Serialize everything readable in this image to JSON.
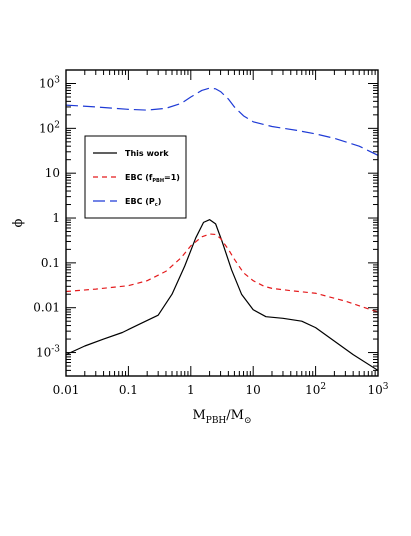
{
  "chart_data": {
    "type": "line",
    "title": "",
    "xlabel": "M_PBH/M_⊙",
    "ylabel": "ϕ",
    "xscale": "log",
    "yscale": "log",
    "xlim": [
      0.01,
      1000
    ],
    "ylim": [
      0.0003,
      2000
    ],
    "grid": false,
    "legend_position": "upper-left",
    "x_ticks": [
      {
        "value": 0.01,
        "base": "0.01",
        "exp": ""
      },
      {
        "value": 0.1,
        "base": "0.1",
        "exp": ""
      },
      {
        "value": 1,
        "base": "1",
        "exp": ""
      },
      {
        "value": 10,
        "base": "10",
        "exp": ""
      },
      {
        "value": 100,
        "base": "10",
        "exp": "2"
      },
      {
        "value": 1000,
        "base": "10",
        "exp": "3"
      }
    ],
    "y_ticks": [
      {
        "value": 0.001,
        "base": "10",
        "exp": "-3"
      },
      {
        "value": 0.01,
        "base": "0.01",
        "exp": ""
      },
      {
        "value": 0.1,
        "base": "0.1",
        "exp": ""
      },
      {
        "value": 1,
        "base": "1",
        "exp": ""
      },
      {
        "value": 10,
        "base": "10",
        "exp": ""
      },
      {
        "value": 100,
        "base": "10",
        "exp": "2"
      },
      {
        "value": 1000,
        "base": "10",
        "exp": "3"
      }
    ],
    "series": [
      {
        "name": "This work",
        "color": "#000000",
        "dash": "solid",
        "x": [
          0.01,
          0.02,
          0.04,
          0.08,
          0.15,
          0.3,
          0.5,
          0.8,
          1.2,
          1.6,
          2.0,
          2.5,
          3.2,
          4.5,
          6.5,
          10,
          16,
          30,
          60,
          100,
          200,
          400,
          1000
        ],
        "y": [
          0.0009,
          0.0014,
          0.002,
          0.0028,
          0.0043,
          0.0068,
          0.02,
          0.085,
          0.36,
          0.8,
          0.92,
          0.74,
          0.29,
          0.07,
          0.02,
          0.009,
          0.0063,
          0.0058,
          0.005,
          0.0036,
          0.0018,
          0.0009,
          0.0004
        ]
      },
      {
        "name": "EBC (f_PBH=1)",
        "color": "#e41a1c",
        "dash": "short",
        "x": [
          0.01,
          0.03,
          0.1,
          0.2,
          0.4,
          0.7,
          1.0,
          1.5,
          2.0,
          2.5,
          3.0,
          4.0,
          5.0,
          7.0,
          10,
          15,
          20,
          40,
          100,
          300,
          1000
        ],
        "y": [
          0.023,
          0.026,
          0.031,
          0.04,
          0.065,
          0.13,
          0.24,
          0.38,
          0.44,
          0.43,
          0.35,
          0.2,
          0.12,
          0.06,
          0.04,
          0.03,
          0.027,
          0.024,
          0.021,
          0.014,
          0.008
        ]
      },
      {
        "name": "EBC (P_c)",
        "color": "#1f3bd6",
        "dash": "long",
        "x": [
          0.01,
          0.03,
          0.1,
          0.2,
          0.4,
          0.7,
          1.0,
          1.5,
          2.0,
          2.5,
          3.0,
          4.0,
          5.0,
          7.0,
          10,
          20,
          50,
          100,
          200,
          500,
          1000
        ],
        "y": [
          330,
          300,
          265,
          255,
          280,
          360,
          500,
          700,
          790,
          760,
          660,
          450,
          300,
          190,
          140,
          110,
          90,
          75,
          60,
          40,
          25
        ]
      }
    ]
  }
}
